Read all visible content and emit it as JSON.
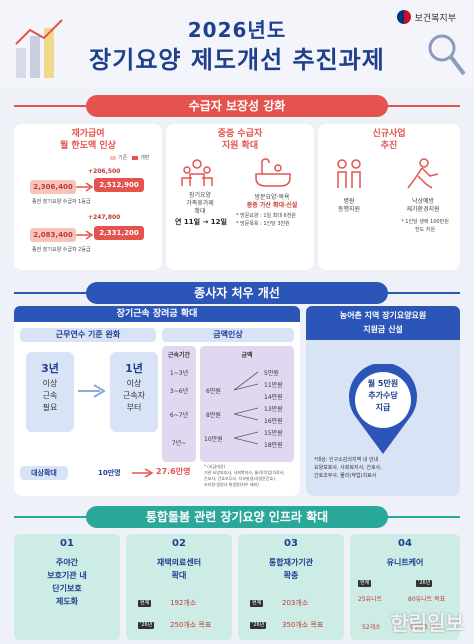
{
  "header": {
    "ministry": "보건복지부",
    "title_year": "2026년도",
    "title_main": "장기요양 제도개선 추진과제"
  },
  "section1": {
    "band": "수급자 보장성 강화",
    "col1": {
      "title_line1": "재가급여",
      "title_line2": "월 한도액 인상",
      "legend_prev": "기존",
      "legend_next": "개편",
      "row1": {
        "from": "2,306,400",
        "to": "2,512,900",
        "increase": "+206,500",
        "caption": "종전 장기요양 수급자 1등급"
      },
      "row2": {
        "from": "2,083,400",
        "to": "2,331,200",
        "increase": "+247,800",
        "caption": "종전 장기요양 수급자 2등급"
      }
    },
    "col2": {
      "title_line1": "중증 수급자",
      "title_line2": "지원 확대",
      "item1_line1": "장기요양",
      "item1_line2": "가족휴가제",
      "item1_line3": "확대",
      "item1_value": "연 11일 → 12일",
      "item2_line1": "방문요양·목욕",
      "item2_line2": "중증 가산 확대·신설",
      "item2_note1": "* 방문요양 : 1일 최대 6천원",
      "item2_note2": "* 방문목욕 : 1인당 3천원"
    },
    "col3": {
      "title_line1": "신규사업",
      "title_line2": "추진",
      "item1_line1": "병원",
      "item1_line2": "동행지원",
      "item2_line1": "낙상예방",
      "item2_line2": "재가환경지원",
      "item2_note1": "* 1인당 생애 100만원",
      "item2_note2": "한도 지원"
    }
  },
  "section2": {
    "band": "종사자 처우 개선",
    "left_head": "장기근속 장려금 확대",
    "sub1": "근무연수 기준 완화",
    "from_line1": "3년",
    "from_line2": "이상",
    "from_line3": "근속",
    "from_line4": "필요",
    "to_line1": "1년",
    "to_line2": "이상",
    "to_line3": "근속자",
    "to_line4": "부터",
    "sub2": "금액인상",
    "years_head": "근속기간",
    "years": [
      "1~3년",
      "3~6년",
      "6~7년",
      "7년~"
    ],
    "amount_head": "금액",
    "amounts": [
      {
        "from": "",
        "to": "5만원"
      },
      {
        "from": "6만원",
        "to": "11만원"
      },
      {
        "from": "",
        "to": "14만원"
      },
      {
        "from": "8만원",
        "to": "13만원"
      },
      {
        "from": "",
        "to": "16만원"
      },
      {
        "from": "10만원",
        "to": "15만원"
      },
      {
        "from": "",
        "to": "18만원"
      }
    ],
    "target_label": "대상확대",
    "target_from": "10만명",
    "target_to": "27.6만명",
    "note_line1": "* (지급대상)",
    "note_line2": "기관 요양보호사, 사회복지사, 물리(작업)치료사,",
    "note_line3": "간호사, 간호조무사, 치과위생사(방문간호),",
    "note_line4": "조리원·영양사·위생원(처우 제외)",
    "right_head_line1": "농어촌 지역 장기요양요원",
    "right_head_line2": "지원금 신설",
    "right_value_line1": "월 5만원",
    "right_value_line2": "추가수당",
    "right_value_line3": "지급",
    "right_note_line1": "*대상: 인구소감쇠지역 내 안내",
    "right_note_line2": "요양보호사, 사회복지사, 간호사,",
    "right_note_line3": "간호조무사, 물리(작업)치료사"
  },
  "section3": {
    "band": "통합돌봄 관련 장기요양 인프라 확대",
    "cards": [
      {
        "num": "01",
        "line1": "주야간",
        "line2": "보호기관 내",
        "line3": "단기보호",
        "line4": "제도화"
      },
      {
        "num": "02",
        "line1": "재택의료센터",
        "line2": "확대",
        "tag1": "현재",
        "val1": "192개소",
        "tag2": "'26년",
        "val2": "250개소 목표"
      },
      {
        "num": "03",
        "line1": "통합재가기관",
        "line2": "확충",
        "tag1": "현재",
        "val1": "203개소",
        "tag2": "'26년",
        "val2": "350개소 목표"
      },
      {
        "num": "04",
        "line1": "유니트케어",
        "tag1": "현재",
        "tag2": "'26년",
        "val_a1": "25유니트",
        "val_a2": "80유니트 목표",
        "val_b1": "52개소",
        "val_b2": "90개소 목표"
      }
    ]
  },
  "watermark": "한림일보",
  "colors": {
    "red": "#e4534e",
    "blue": "#2c55b8",
    "navy": "#1f3f8f",
    "teal": "#2aa89a"
  }
}
